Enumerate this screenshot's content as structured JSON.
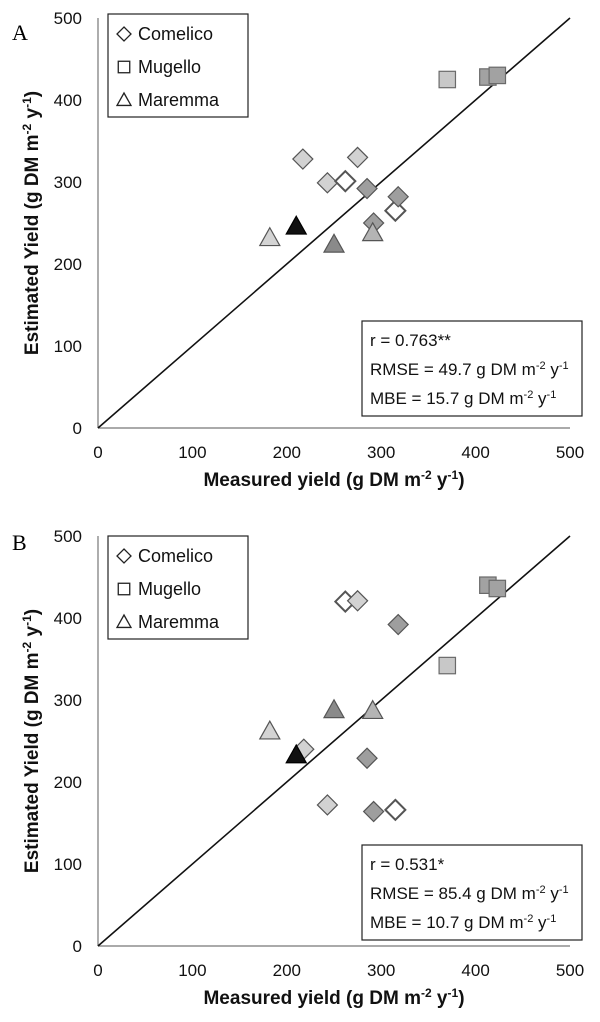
{
  "chart_data": [
    {
      "type": "scatter",
      "panel_label": "A",
      "xlabel": "Measured yield (g DM m-2 y-1)",
      "ylabel": "Estimated Yield (g DM m-2 y-1)",
      "xlim": [
        0,
        500
      ],
      "ylim": [
        0,
        500
      ],
      "xticks": [
        0,
        100,
        200,
        300,
        400,
        500
      ],
      "yticks": [
        0,
        100,
        200,
        300,
        400,
        500
      ],
      "legend_position": "top-left",
      "reference_line": "1:1",
      "series": [
        {
          "name": "Comelico",
          "marker": "diamond",
          "points": [
            {
              "x": 217,
              "y": 328,
              "shade": "#d2d2d2"
            },
            {
              "x": 243,
              "y": 299,
              "shade": "#d2d2d2"
            },
            {
              "x": 262,
              "y": 301,
              "shade": "#ffffff"
            },
            {
              "x": 275,
              "y": 330,
              "shade": "#d2d2d2"
            },
            {
              "x": 285,
              "y": 292,
              "shade": "#9e9e9e"
            },
            {
              "x": 292,
              "y": 250,
              "shade": "#9e9e9e"
            },
            {
              "x": 315,
              "y": 265,
              "shade": "#ffffff"
            },
            {
              "x": 318,
              "y": 282,
              "shade": "#9e9e9e"
            }
          ]
        },
        {
          "name": "Mugello",
          "marker": "square",
          "points": [
            {
              "x": 370,
              "y": 425,
              "shade": "#c8c8c8"
            },
            {
              "x": 413,
              "y": 428,
              "shade": "#a2a2a2"
            },
            {
              "x": 423,
              "y": 430,
              "shade": "#a2a2a2"
            }
          ]
        },
        {
          "name": "Maremma",
          "marker": "triangle",
          "points": [
            {
              "x": 182,
              "y": 232,
              "shade": "#d4d4d4"
            },
            {
              "x": 210,
              "y": 246,
              "shade": "#111111"
            },
            {
              "x": 250,
              "y": 224,
              "shade": "#8a8a8a"
            },
            {
              "x": 291,
              "y": 238,
              "shade": "#b4b4b4"
            }
          ]
        }
      ],
      "stats": [
        "r = 0.763**",
        "RMSE = 49.7 g DM m-2 y-1",
        "MBE = 15.7 g DM m-2 y-1"
      ]
    },
    {
      "type": "scatter",
      "panel_label": "B",
      "xlabel": "Measured yield (g DM m-2 y-1)",
      "ylabel": "Estimated Yield (g DM m-2 y-1)",
      "xlim": [
        0,
        500
      ],
      "ylim": [
        0,
        500
      ],
      "xticks": [
        0,
        100,
        200,
        300,
        400,
        500
      ],
      "yticks": [
        0,
        100,
        200,
        300,
        400,
        500
      ],
      "legend_position": "top-left",
      "reference_line": "1:1",
      "series": [
        {
          "name": "Comelico",
          "marker": "diamond",
          "points": [
            {
              "x": 218,
              "y": 240,
              "shade": "#d2d2d2"
            },
            {
              "x": 243,
              "y": 172,
              "shade": "#d2d2d2"
            },
            {
              "x": 262,
              "y": 420,
              "shade": "#ffffff"
            },
            {
              "x": 275,
              "y": 421,
              "shade": "#d2d2d2"
            },
            {
              "x": 285,
              "y": 229,
              "shade": "#9e9e9e"
            },
            {
              "x": 292,
              "y": 164,
              "shade": "#9e9e9e"
            },
            {
              "x": 315,
              "y": 166,
              "shade": "#ffffff"
            },
            {
              "x": 318,
              "y": 392,
              "shade": "#9e9e9e"
            }
          ]
        },
        {
          "name": "Mugello",
          "marker": "square",
          "points": [
            {
              "x": 370,
              "y": 342,
              "shade": "#c8c8c8"
            },
            {
              "x": 413,
              "y": 440,
              "shade": "#a2a2a2"
            },
            {
              "x": 423,
              "y": 436,
              "shade": "#a2a2a2"
            }
          ]
        },
        {
          "name": "Maremma",
          "marker": "triangle",
          "points": [
            {
              "x": 182,
              "y": 262,
              "shade": "#d4d4d4"
            },
            {
              "x": 210,
              "y": 233,
              "shade": "#111111"
            },
            {
              "x": 250,
              "y": 288,
              "shade": "#8a8a8a"
            },
            {
              "x": 291,
              "y": 287,
              "shade": "#b4b4b4"
            }
          ]
        }
      ],
      "stats": [
        "r = 0.531*",
        "RMSE = 85.4 g DM m-2 y-1",
        "MBE = 10.7 g DM m-2 y-1"
      ]
    }
  ]
}
